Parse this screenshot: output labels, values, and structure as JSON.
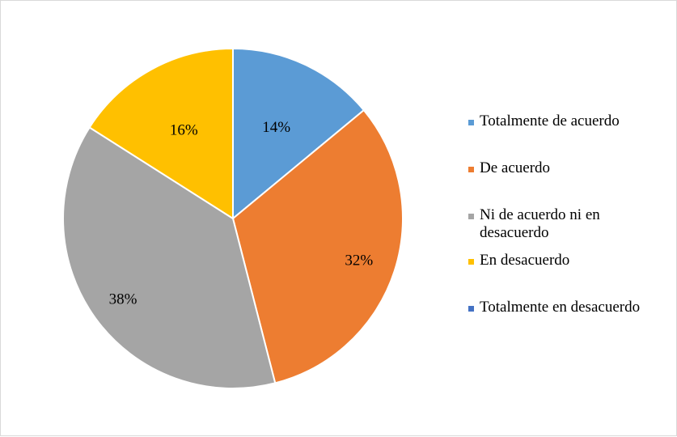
{
  "chart_data": {
    "type": "pie",
    "categories": [
      "Totalmente de acuerdo",
      "De acuerdo",
      "Ni de acuerdo ni en desacuerdo",
      "En desacuerdo",
      "Totalmente en desacuerdo"
    ],
    "values": [
      14,
      32,
      38,
      16,
      0
    ],
    "labels": [
      "14%",
      "32%",
      "38%",
      "16%",
      ""
    ],
    "colors": [
      "#5b9bd5",
      "#ed7d31",
      "#a5a5a5",
      "#ffc000",
      "#4472c4"
    ],
    "legend_position": "right"
  },
  "legend": {
    "items": [
      {
        "label": "Totalmente de acuerdo",
        "color": "#5b9bd5"
      },
      {
        "label": "De acuerdo",
        "color": "#ed7d31"
      },
      {
        "label": "Ni de acuerdo ni en desacuerdo",
        "color": "#a5a5a5"
      },
      {
        "label": "En desacuerdo",
        "color": "#ffc000"
      },
      {
        "label": "Totalmente en desacuerdo",
        "color": "#4472c4"
      }
    ]
  }
}
